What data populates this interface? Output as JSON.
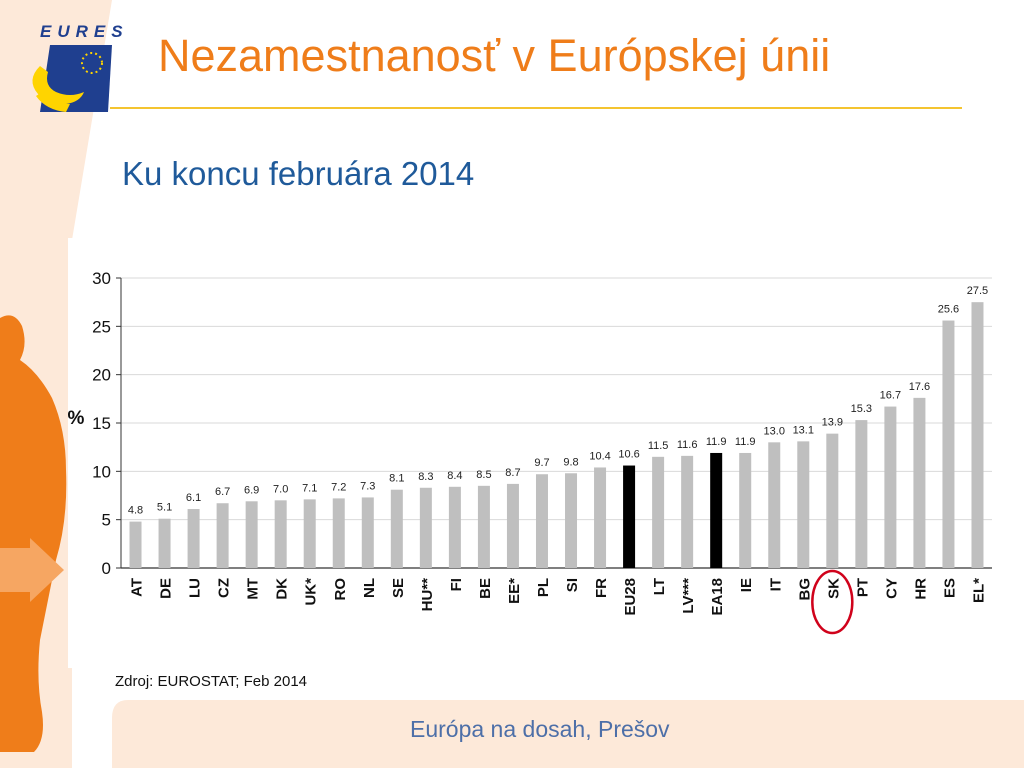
{
  "slide": {
    "logo_text": "EURES",
    "title": "Nezamestnanosť v Európskej únii",
    "subtitle": "Ku koncu februára 2014",
    "source": "Zdroj: EUROSTAT; Feb 2014",
    "footer": "Európa na dosah, Prešov"
  },
  "colors": {
    "title": "#ef7d1a",
    "subtitle": "#1f5a9a",
    "bar_default": "#bfbfbf",
    "bar_highlight": "#000000",
    "circle": "#d0021b",
    "background_peach": "#fde9d9",
    "rule": "#f4c430"
  },
  "chart_data": {
    "type": "bar",
    "ylabel": "%",
    "ylim": [
      0,
      30
    ],
    "yticks": [
      0,
      5,
      10,
      15,
      20,
      25,
      30
    ],
    "grid": true,
    "categories": [
      "AT",
      "DE",
      "LU",
      "CZ",
      "MT",
      "DK",
      "UK*",
      "RO",
      "NL",
      "SE",
      "HU**",
      "FI",
      "BE",
      "EE*",
      "PL",
      "SI",
      "FR",
      "EU28",
      "LT",
      "LV***",
      "EA18",
      "IE",
      "IT",
      "BG",
      "SK",
      "PT",
      "CY",
      "HR",
      "ES",
      "EL*"
    ],
    "values": [
      4.8,
      5.1,
      6.1,
      6.7,
      6.9,
      7.0,
      7.1,
      7.2,
      7.3,
      8.1,
      8.3,
      8.4,
      8.5,
      8.7,
      9.7,
      9.8,
      10.4,
      10.6,
      11.5,
      11.6,
      11.9,
      11.9,
      13.0,
      13.1,
      13.9,
      15.3,
      16.7,
      17.6,
      25.6,
      27.5
    ],
    "value_labels": [
      "4.8",
      "5.1",
      "6.1",
      "6.7",
      "6.9",
      "7.0",
      "7.1",
      "7.2",
      "7.3",
      "8.1",
      "8.3",
      "8.4",
      "8.5",
      "8.7",
      "9.7",
      "9.8",
      "10.4",
      "10.6",
      "11.5",
      "11.6",
      "11.9",
      "11.9",
      "13.0",
      "13.1",
      "13.9",
      "15.3",
      "16.7",
      "17.6",
      "25.6",
      "27.5"
    ],
    "highlighted_black": [
      "EU28",
      "EA18"
    ],
    "circled": "SK"
  }
}
